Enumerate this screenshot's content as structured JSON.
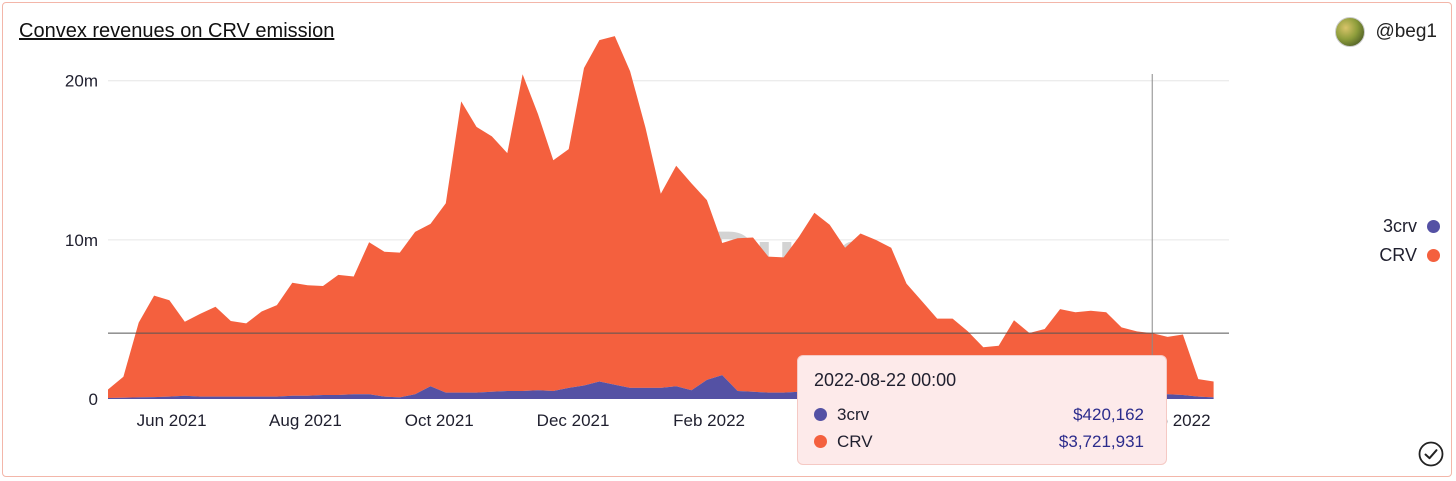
{
  "header": {
    "title": "Convex revenues on CRV emission",
    "author": "@beg1"
  },
  "watermark": "Dune",
  "colors": {
    "crv": "#f4603e",
    "three_crv": "#5451a4",
    "grid": "#e6e6e6",
    "tooltip_bg": "#fdeaea"
  },
  "legend": [
    {
      "label": "3crv",
      "color": "#5451a4"
    },
    {
      "label": "CRV",
      "color": "#f4603e"
    }
  ],
  "tooltip": {
    "date": "2022-08-22 00:00",
    "rows": [
      {
        "name": "3crv",
        "value": "$420,162",
        "color": "#5451a4"
      },
      {
        "name": "CRV",
        "value": "$3,721,931",
        "color": "#f4603e"
      }
    ]
  },
  "chart_data": {
    "type": "area",
    "stacked": true,
    "x_axis": {
      "start": "2021-05-03",
      "end": "2022-09-26",
      "tick_labels": [
        "Jun 2021",
        "Aug 2021",
        "Oct 2021",
        "Dec 2021",
        "Feb 2022",
        "Sep 2022"
      ],
      "tick_dates": [
        "2021-06-01",
        "2021-08-01",
        "2021-10-01",
        "2021-12-01",
        "2022-02-01",
        "2022-09-01"
      ]
    },
    "y_axis": {
      "ticks": [
        0,
        10000000,
        20000000
      ],
      "tick_labels": [
        "0",
        "10m",
        "20m"
      ],
      "ylim": [
        0,
        23500000
      ]
    },
    "grid": true,
    "legend_position": "right",
    "crosshair": {
      "date": "2022-08-22",
      "value": 4142093
    },
    "x": [
      "2021-05-03",
      "2021-05-10",
      "2021-05-17",
      "2021-05-24",
      "2021-05-31",
      "2021-06-07",
      "2021-06-14",
      "2021-06-21",
      "2021-06-28",
      "2021-07-05",
      "2021-07-12",
      "2021-07-19",
      "2021-07-26",
      "2021-08-02",
      "2021-08-09",
      "2021-08-16",
      "2021-08-23",
      "2021-08-30",
      "2021-09-06",
      "2021-09-13",
      "2021-09-20",
      "2021-09-27",
      "2021-10-04",
      "2021-10-11",
      "2021-10-18",
      "2021-10-25",
      "2021-11-01",
      "2021-11-08",
      "2021-11-15",
      "2021-11-22",
      "2021-11-29",
      "2021-12-06",
      "2021-12-13",
      "2021-12-20",
      "2021-12-27",
      "2022-01-03",
      "2022-01-10",
      "2022-01-17",
      "2022-01-24",
      "2022-01-31",
      "2022-02-07",
      "2022-02-14",
      "2022-02-21",
      "2022-02-28",
      "2022-03-07",
      "2022-03-14",
      "2022-03-21",
      "2022-03-28",
      "2022-04-04",
      "2022-04-11",
      "2022-04-18",
      "2022-04-25",
      "2022-05-02",
      "2022-05-09",
      "2022-05-16",
      "2022-05-23",
      "2022-05-30",
      "2022-06-06",
      "2022-06-13",
      "2022-06-20",
      "2022-06-27",
      "2022-07-04",
      "2022-07-11",
      "2022-07-18",
      "2022-07-25",
      "2022-08-01",
      "2022-08-08",
      "2022-08-15",
      "2022-08-22",
      "2022-08-29",
      "2022-09-05",
      "2022-09-12",
      "2022-09-19"
    ],
    "series": [
      {
        "name": "3crv",
        "values": [
          60000,
          80000,
          100000,
          120000,
          150000,
          200000,
          150000,
          150000,
          150000,
          150000,
          150000,
          150000,
          200000,
          200000,
          250000,
          250000,
          300000,
          300000,
          150000,
          100000,
          300000,
          800000,
          400000,
          400000,
          400000,
          450000,
          500000,
          500000,
          550000,
          500000,
          700000,
          850000,
          1100000,
          900000,
          700000,
          700000,
          700000,
          800000,
          550000,
          1200000,
          1500000,
          500000,
          450000,
          400000,
          400000,
          450000,
          450000,
          450000,
          450000,
          450000,
          450000,
          450000,
          450000,
          450000,
          450000,
          450000,
          450000,
          450000,
          450000,
          450000,
          450000,
          450000,
          450000,
          450000,
          450000,
          450000,
          450000,
          450000,
          420162,
          300000,
          250000,
          150000,
          100000
        ]
      },
      {
        "name": "CRV",
        "values": [
          540000,
          1320000,
          4700000,
          6380000,
          6050000,
          4650000,
          5200000,
          5650000,
          4750000,
          4600000,
          5350000,
          5750000,
          7100000,
          6950000,
          6850000,
          7550000,
          7400000,
          9550000,
          9100000,
          9100000,
          10200000,
          10200000,
          11900000,
          18300000,
          16700000,
          16050000,
          14950000,
          19900000,
          17350000,
          14500000,
          15000000,
          19950000,
          21450000,
          21900000,
          19900000,
          16350000,
          12200000,
          13850000,
          13000000,
          11300000,
          8300000,
          9600000,
          9700000,
          8550000,
          8500000,
          9750000,
          11250000,
          10500000,
          9050000,
          9950000,
          9550000,
          9050000,
          6800000,
          5700000,
          4600000,
          4600000,
          3800000,
          2800000,
          2900000,
          4500000,
          3700000,
          3950000,
          5200000,
          5000000,
          5100000,
          5000000,
          4050000,
          3800000,
          3721931,
          3600000,
          3800000,
          1100000,
          1000000
        ]
      }
    ]
  }
}
